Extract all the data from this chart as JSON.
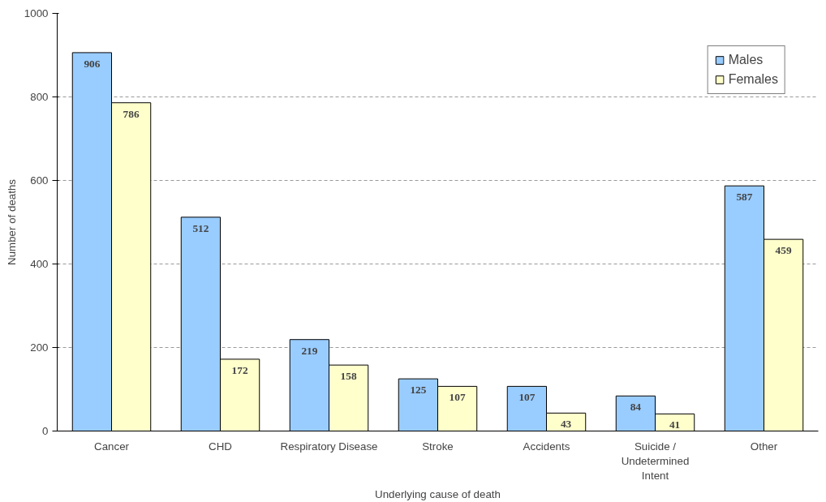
{
  "chart_data": {
    "type": "bar",
    "xlabel": "Underlying cause of death",
    "ylabel": "Number of deaths",
    "categories": [
      "Cancer",
      "CHD",
      "Respiratory Disease",
      "Stroke",
      "Accidents",
      "Suicide /\nUndetermined\nIntent",
      "Other"
    ],
    "series": [
      {
        "name": "Males",
        "color": "#99ccff",
        "values": [
          906,
          512,
          219,
          125,
          107,
          84,
          587
        ]
      },
      {
        "name": "Females",
        "color": "#ffffcc",
        "values": [
          786,
          172,
          158,
          107,
          43,
          41,
          459
        ]
      }
    ],
    "ylim": [
      0,
      1000
    ],
    "yticks": [
      0,
      200,
      400,
      600,
      800,
      1000
    ],
    "grid": "y",
    "legend": "top right",
    "data_labels": true
  }
}
